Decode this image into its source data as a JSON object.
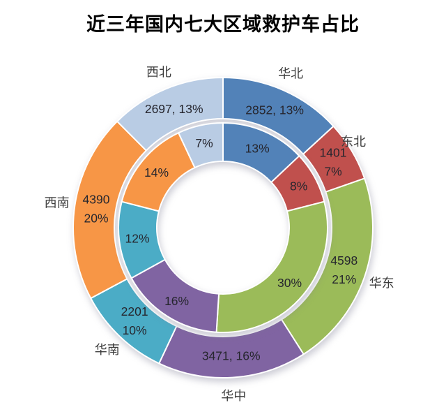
{
  "chart_data": {
    "type": "pie",
    "subtype": "nested-donut",
    "title": "近三年国内七大区域救护车占比",
    "legend_position": "none",
    "rings": [
      {
        "name": "outer",
        "label_style": "value-and-percent"
      },
      {
        "name": "inner",
        "label_style": "percent-only"
      }
    ],
    "regions": [
      {
        "id": "huabei",
        "label": "华北",
        "value": 2852,
        "outer_pct": 13,
        "outer_label_lines": [
          "2852, 13%"
        ],
        "inner_pct": 13,
        "inner_label": "13%",
        "color": "#5282b8"
      },
      {
        "id": "dongbei",
        "label": "东北",
        "value": 1401,
        "outer_pct": 7,
        "outer_label_lines": [
          "1401",
          "7%"
        ],
        "inner_pct": 8,
        "inner_label": "8%",
        "color": "#c0504d"
      },
      {
        "id": "huadong",
        "label": "华东",
        "value": 4598,
        "outer_pct": 21,
        "outer_label_lines": [
          "4598",
          "21%"
        ],
        "inner_pct": 30,
        "inner_label": "30%",
        "color": "#9bbb59"
      },
      {
        "id": "huazhong",
        "label": "华中",
        "value": 3471,
        "outer_pct": 16,
        "outer_label_lines": [
          "3471, 16%"
        ],
        "inner_pct": 16,
        "inner_label": "16%",
        "color": "#8064a2"
      },
      {
        "id": "huanan",
        "label": "华南",
        "value": 2201,
        "outer_pct": 10,
        "outer_label_lines": [
          "2201",
          "10%"
        ],
        "inner_pct": 12,
        "inner_label": "12%",
        "color": "#4bacc6"
      },
      {
        "id": "xinan",
        "label": "西南",
        "value": 4390,
        "outer_pct": 20,
        "outer_label_lines": [
          "4390",
          "20%"
        ],
        "inner_pct": 14,
        "inner_label": "14%",
        "color": "#f79646"
      },
      {
        "id": "xibei",
        "label": "西北",
        "value": 2697,
        "outer_pct": 13,
        "outer_label_lines": [
          "2697, 13%"
        ],
        "inner_pct": 7,
        "inner_label": "7%",
        "color": "#b9cce4"
      }
    ],
    "text_colors": {
      "title": "#000000",
      "value_label": "#26262e",
      "region_name": "#3d3d3d"
    },
    "segment_border_color": "#ffffff"
  }
}
